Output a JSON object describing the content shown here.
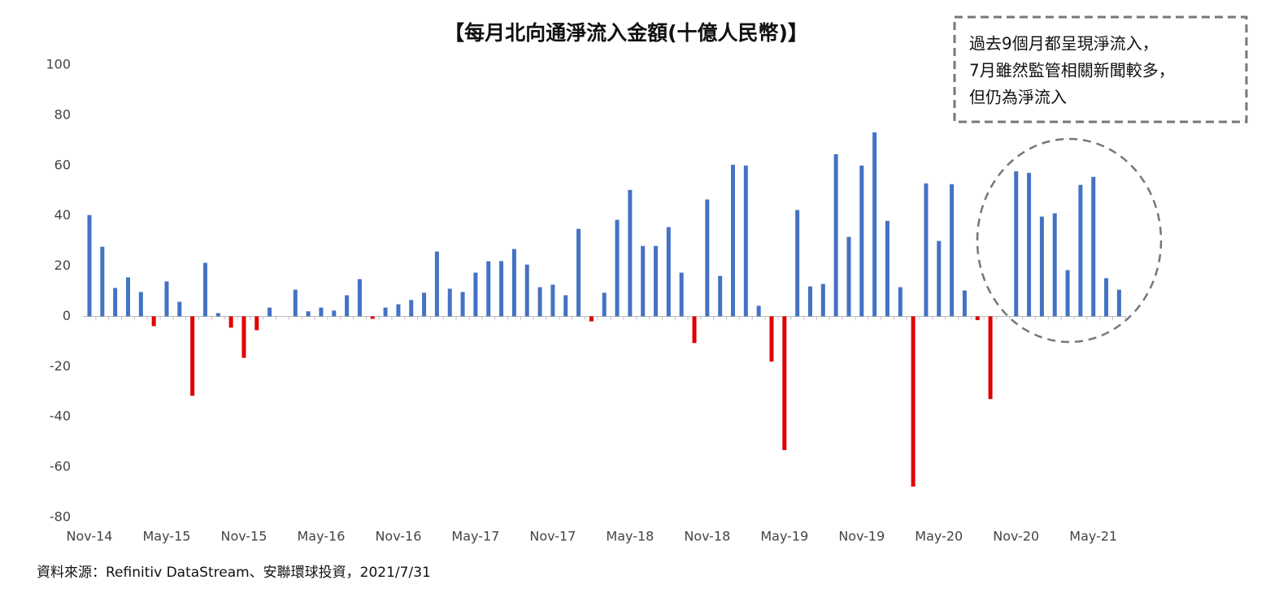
{
  "chart_data": {
    "type": "bar",
    "title": "【每月北向通淨流入金額(十億人民幣)】",
    "annotation": [
      "過去9個月都呈現淨流入，",
      "7月雖然監管相關新聞較多，",
      "但仍為淨流入"
    ],
    "source": "資料來源：Refinitiv DataStream、安聯環球投資，2021/7/31",
    "categories": [
      "Nov-14",
      null,
      null,
      null,
      null,
      null,
      "May-15",
      null,
      null,
      null,
      null,
      null,
      "Nov-15",
      null,
      null,
      null,
      null,
      null,
      "May-16",
      null,
      null,
      null,
      null,
      null,
      "Nov-16",
      null,
      null,
      null,
      null,
      null,
      "May-17",
      null,
      null,
      null,
      null,
      null,
      "Nov-17",
      null,
      null,
      null,
      null,
      null,
      "May-18",
      null,
      null,
      null,
      null,
      null,
      "Nov-18",
      null,
      null,
      null,
      null,
      null,
      "May-19",
      null,
      null,
      null,
      null,
      null,
      "Nov-19",
      null,
      null,
      null,
      null,
      null,
      "May-20",
      null,
      null,
      null,
      null,
      null,
      "Nov-20",
      null,
      null,
      null,
      null,
      null,
      "May-21",
      null,
      null
    ],
    "values": [
      40.3,
      27.7,
      11.3,
      15.5,
      9.7,
      -3.9,
      13.9,
      5.8,
      -31.6,
      21.3,
      1.3,
      -4.5,
      -16.5,
      -5.5,
      3.5,
      0,
      10.6,
      2,
      3.5,
      2.3,
      8.4,
      14.8,
      -1,
      3.5,
      4.8,
      6.5,
      9.4,
      25.8,
      11,
      9.7,
      17.4,
      21.9,
      22,
      26.8,
      20.6,
      11.6,
      12.6,
      8.4,
      34.8,
      -2,
      9.4,
      38.4,
      50.3,
      28,
      28,
      35.5,
      17.4,
      -10.6,
      46.5,
      16.1,
      60.3,
      60,
      4.2,
      -18,
      -53.2,
      42.3,
      11.9,
      12.9,
      64.5,
      31.6,
      60,
      73.2,
      38,
      11.6,
      -67.7,
      52.9,
      30,
      52.6,
      10.3,
      -1.5,
      -32.9,
      0,
      57.7,
      57.1,
      39.7,
      41,
      18.4,
      52.3,
      55.5,
      15.2,
      10.6
    ],
    "positive_color": "#4472c4",
    "negative_color": "#e00000",
    "ylim": [
      -80,
      100
    ],
    "yticks": [
      -80,
      -60,
      -40,
      -20,
      0,
      20,
      40,
      60,
      80,
      100
    ],
    "grid": false
  }
}
